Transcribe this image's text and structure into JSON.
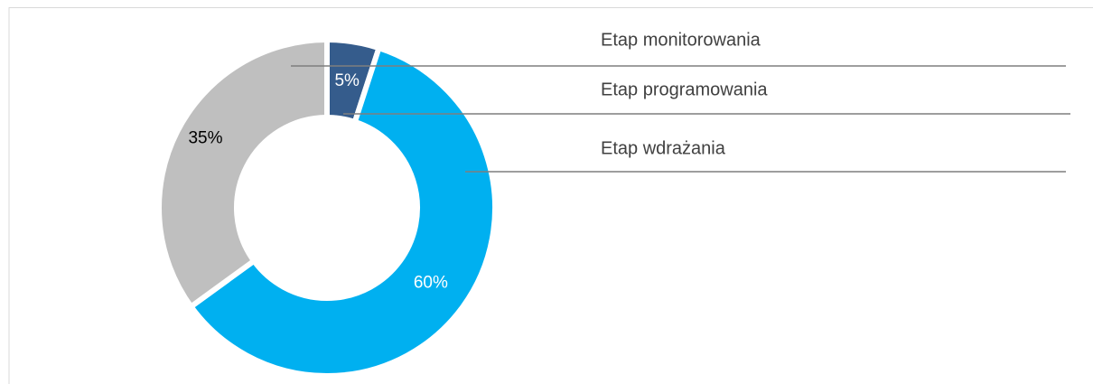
{
  "chart_data": {
    "type": "donut",
    "categories": [
      "Etap programowania",
      "Etap wdrażania",
      "Etap monitorowania"
    ],
    "values": [
      5,
      60,
      35
    ],
    "value_labels": [
      "5%",
      "60%",
      "35%"
    ],
    "colors": [
      "#355c8c",
      "#00b0f0",
      "#bfbfbf"
    ],
    "label_colors": [
      "#ffffff",
      "#ffffff",
      "#000000"
    ]
  }
}
